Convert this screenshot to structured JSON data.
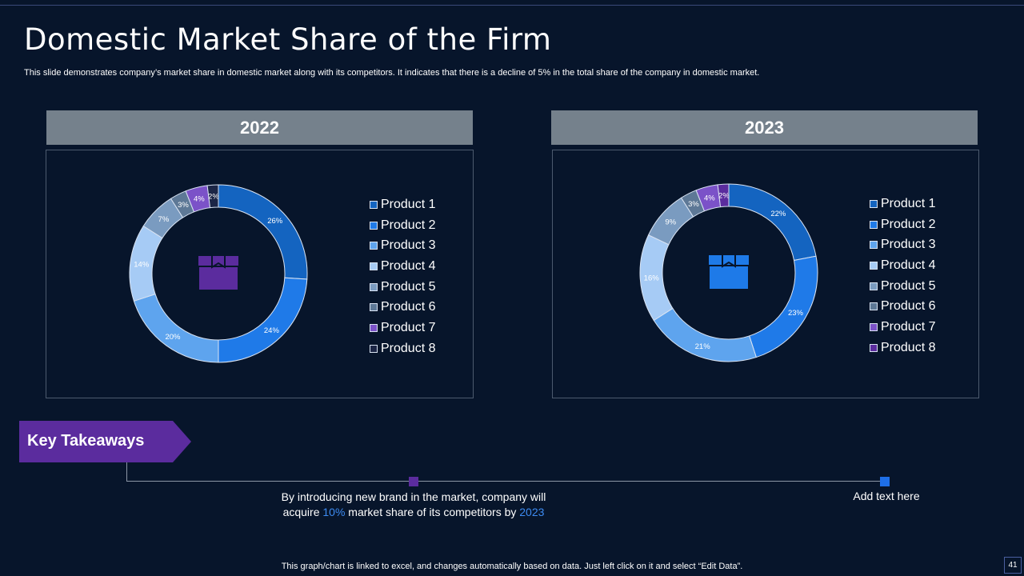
{
  "slide": {
    "title": "Domestic Market Share of the Firm",
    "subtitle": "This slide demonstrates company’s market share in domestic market along with its competitors. It indicates that there is a decline of 5% in the total share of the company in domestic market.",
    "footer_note": "This graph/chart is linked to excel,  and changes automatically based on data. Just left click on it and select “Edit Data”.",
    "page_number": "41"
  },
  "takeaways": {
    "label": "Key Takeaways",
    "note1_pre": "By introducing new brand in the market, company will acquire ",
    "note1_hl1": "10%",
    "note1_mid": " market share of its competitors by ",
    "note1_hl2": "2023",
    "note2": "Add text here"
  },
  "colors": {
    "background": "#07152b",
    "header_bar": "#75818c",
    "accent_purple": "#5b2c9e",
    "accent_blue": "#1e6fe8",
    "highlight_text": "#3d8bf2"
  },
  "icons": {
    "center_icon": "box-icon"
  },
  "chart_data": [
    {
      "type": "pie",
      "title": "2022",
      "categories": [
        "Product 1",
        "Product 2",
        "Product 3",
        "Product 4",
        "Product 5",
        "Product 6",
        "Product 7",
        "Product 8"
      ],
      "values": [
        26,
        24,
        20,
        14,
        7,
        3,
        4,
        2
      ],
      "labels": [
        "26%",
        "24%",
        "20%",
        "14%",
        "7%",
        "3%",
        "4%",
        "2%"
      ],
      "colors": [
        "#1464c0",
        "#1f7ae8",
        "#5ea4ee",
        "#a6cbf5",
        "#7a9bc0",
        "#5d7896",
        "#7b52c8",
        "#1c2646"
      ],
      "center_icon_color": "#5b2c9e",
      "legend_position": "right"
    },
    {
      "type": "pie",
      "title": "2023",
      "categories": [
        "Product 1",
        "Product 2",
        "Product 3",
        "Product 4",
        "Product 5",
        "Product 6",
        "Product 7",
        "Product 8"
      ],
      "values": [
        22,
        23,
        21,
        16,
        9,
        3,
        4,
        2
      ],
      "labels": [
        "22%",
        "23%",
        "21%",
        "16%",
        "9%",
        "3%",
        "4%",
        "2%"
      ],
      "colors": [
        "#1464c0",
        "#1f7ae8",
        "#5ea4ee",
        "#a6cbf5",
        "#7a9bc0",
        "#5d7896",
        "#7b52c8",
        "#5b2c9e"
      ],
      "center_icon_color": "#1e7ae8",
      "legend_position": "right"
    }
  ]
}
